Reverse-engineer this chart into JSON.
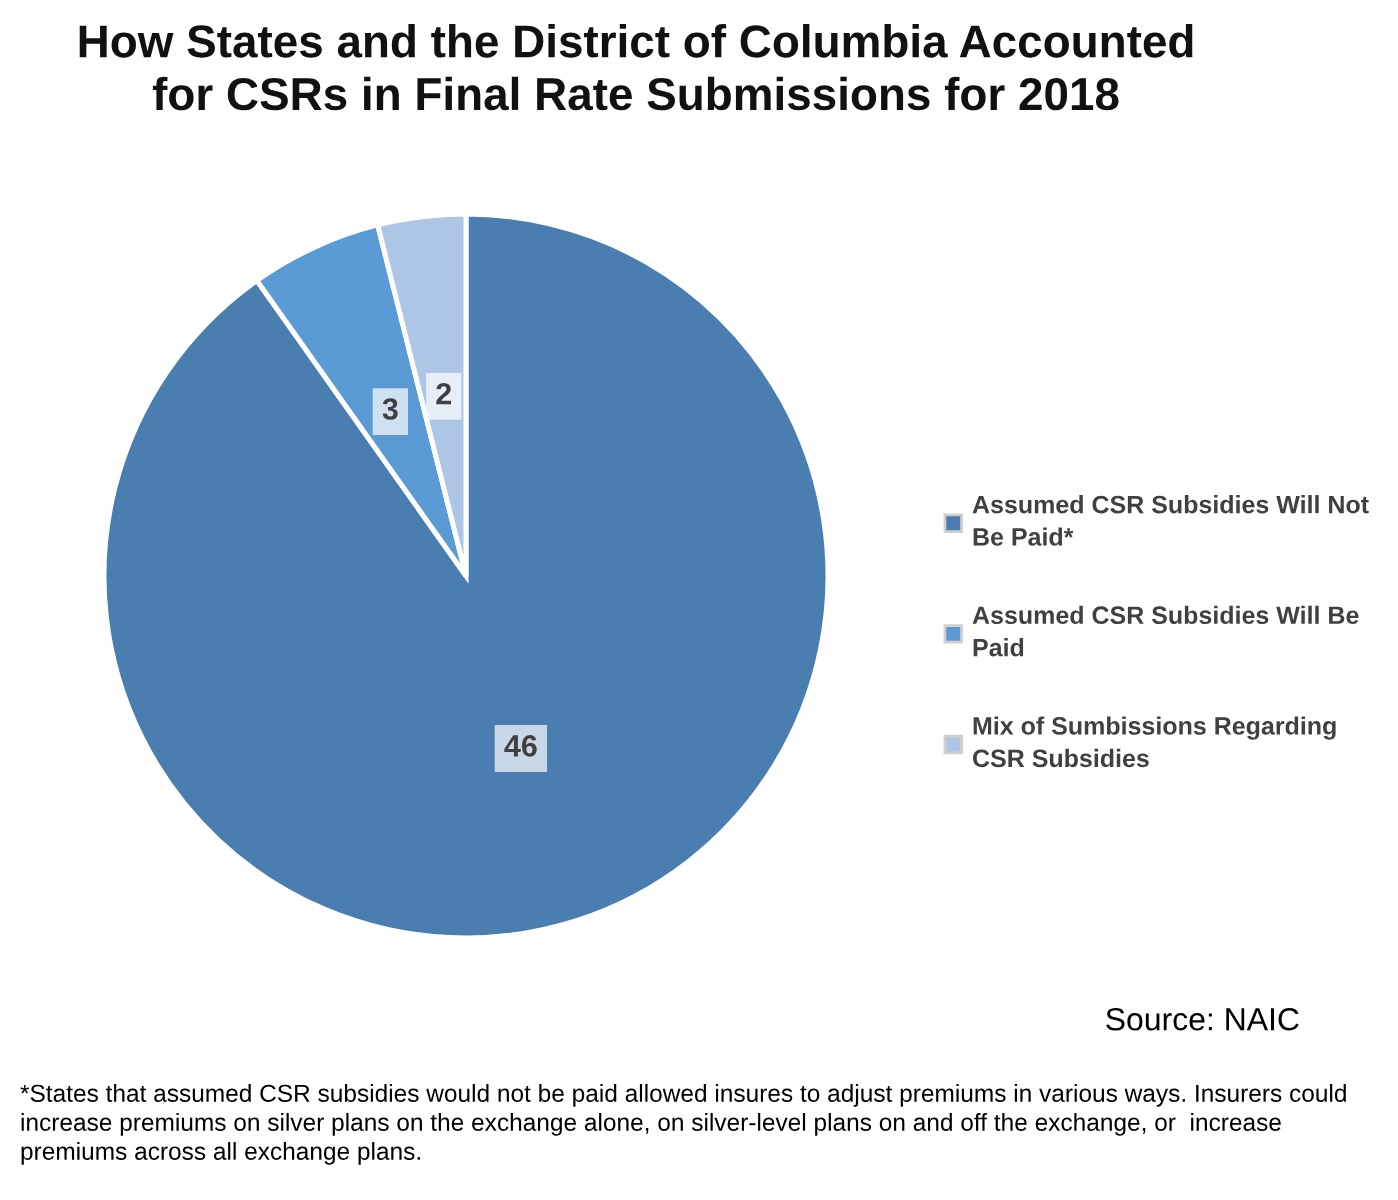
{
  "chart_data": {
    "type": "pie",
    "title": "How States and the District of Columbia Accounted for CSRs in Final Rate Submissions for 2018",
    "categories": [
      "Assumed CSR Subsidies Will Not Be Paid*",
      "Assumed CSR Subsidies Will Be Paid",
      "Mix of Sumbissions Regarding CSR Subsidies"
    ],
    "values": [
      46,
      3,
      2
    ],
    "colors": [
      "#4a7eb0",
      "#5b9bd5",
      "#adc6e6"
    ],
    "data_labels": true,
    "legend": "right",
    "annotations": [
      "Source: NAIC",
      "*States that assumed CSR subsidies would not be paid allowed insures to adjust premiums in various ways. Insurers could increase premiums on silver plans on the exchange alone, on silver-level plans on and off the exchange, or  increase premiums across all exchange plans."
    ]
  }
}
